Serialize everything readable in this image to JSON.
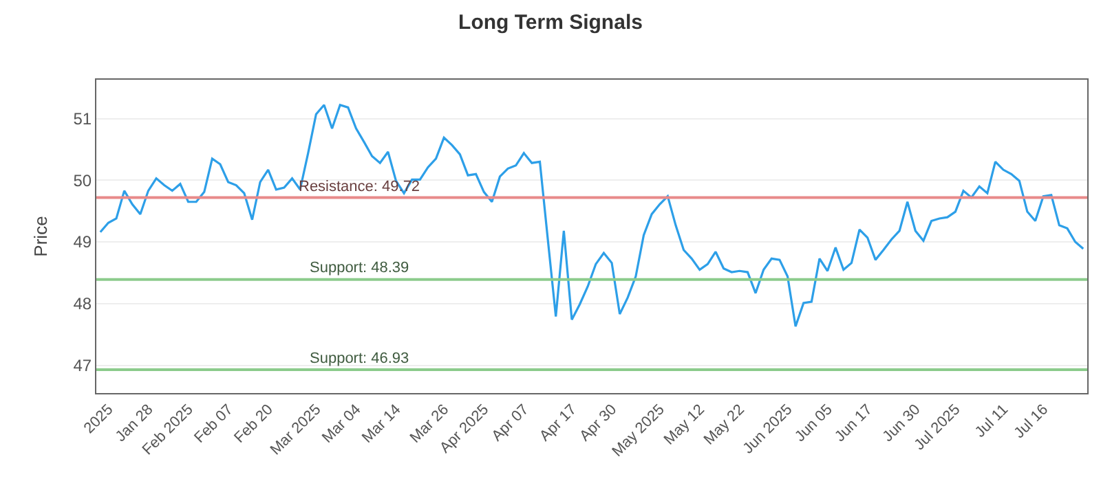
{
  "chart_data": {
    "type": "line",
    "title": "Long Term Signals",
    "ylabel": "Price",
    "categories": [
      null,
      "2025",
      null,
      null,
      null,
      null,
      "Jan 28",
      null,
      null,
      null,
      null,
      "Feb 2025",
      null,
      null,
      null,
      null,
      "Feb 07",
      null,
      null,
      null,
      null,
      "Feb 20",
      null,
      null,
      null,
      null,
      null,
      "Mar 2025",
      null,
      null,
      null,
      null,
      "Mar 04",
      null,
      null,
      null,
      null,
      "Mar 14",
      null,
      null,
      null,
      null,
      null,
      "Mar 26",
      null,
      null,
      null,
      null,
      "Apr 2025",
      null,
      null,
      null,
      null,
      "Apr 07",
      null,
      null,
      null,
      null,
      null,
      "Apr 17",
      null,
      null,
      null,
      null,
      "Apr 30",
      null,
      null,
      null,
      null,
      null,
      "May 2025",
      null,
      null,
      null,
      null,
      "May 12",
      null,
      null,
      null,
      null,
      "May 22",
      null,
      null,
      null,
      null,
      null,
      "Jun 2025",
      null,
      null,
      null,
      null,
      "Jun 05",
      null,
      null,
      null,
      null,
      "Jun 17",
      null,
      null,
      null,
      null,
      null,
      "Jun 30",
      null,
      null,
      null,
      null,
      "Jul 2025",
      null,
      null,
      null,
      null,
      null,
      "Jul 11",
      null,
      null,
      null,
      null,
      "Jul 16",
      null,
      null,
      null,
      null,
      null
    ],
    "series": [
      {
        "color": "#2d9fe8",
        "values": [
          49.16,
          49.31,
          49.38,
          49.83,
          49.61,
          49.45,
          49.83,
          50.03,
          49.92,
          49.83,
          49.94,
          49.65,
          49.65,
          49.81,
          50.35,
          50.26,
          49.97,
          49.92,
          49.79,
          49.36,
          49.97,
          50.17,
          49.85,
          49.88,
          50.03,
          49.85,
          50.44,
          51.07,
          51.22,
          50.84,
          51.22,
          51.18,
          50.84,
          50.62,
          50.39,
          50.28,
          50.46,
          49.99,
          49.79,
          50.01,
          50.01,
          50.21,
          50.35,
          50.69,
          50.57,
          50.42,
          50.08,
          50.1,
          49.81,
          49.65,
          50.06,
          50.19,
          50.24,
          50.44,
          50.28,
          50.3,
          49.04,
          47.79,
          49.18,
          47.74,
          47.99,
          48.28,
          48.64,
          48.82,
          48.66,
          47.83,
          48.1,
          48.44,
          49.11,
          49.45,
          49.61,
          49.74,
          49.27,
          48.87,
          48.73,
          48.55,
          48.64,
          48.84,
          48.57,
          48.51,
          48.53,
          48.51,
          48.17,
          48.55,
          48.73,
          48.71,
          48.44,
          47.63,
          48.01,
          48.03,
          48.73,
          48.53,
          48.91,
          48.55,
          48.66,
          49.2,
          49.07,
          48.71,
          48.87,
          49.04,
          49.18,
          49.65,
          49.18,
          49.02,
          49.34,
          49.38,
          49.4,
          49.49,
          49.83,
          49.72,
          49.9,
          49.79,
          50.3,
          50.17,
          50.1,
          49.99,
          49.49,
          49.34,
          49.74,
          49.76,
          49.27,
          49.22,
          49.0,
          48.89
        ]
      }
    ],
    "ylim": [
      46.55,
      51.63
    ],
    "yticks": [
      47,
      48,
      49,
      50,
      51
    ],
    "grid": "y",
    "marker": "none",
    "line_style": "solid",
    "ref_lines": [
      {
        "axis": "y",
        "value": 49.72,
        "label": "Resistance: 49.72",
        "color": "#e88a8a"
      },
      {
        "axis": "y",
        "value": 48.39,
        "label": "Support: 48.39",
        "color": "#8ccb8c"
      },
      {
        "axis": "y",
        "value": 46.93,
        "label": "Support: 46.93",
        "color": "#8ccb8c"
      }
    ]
  }
}
